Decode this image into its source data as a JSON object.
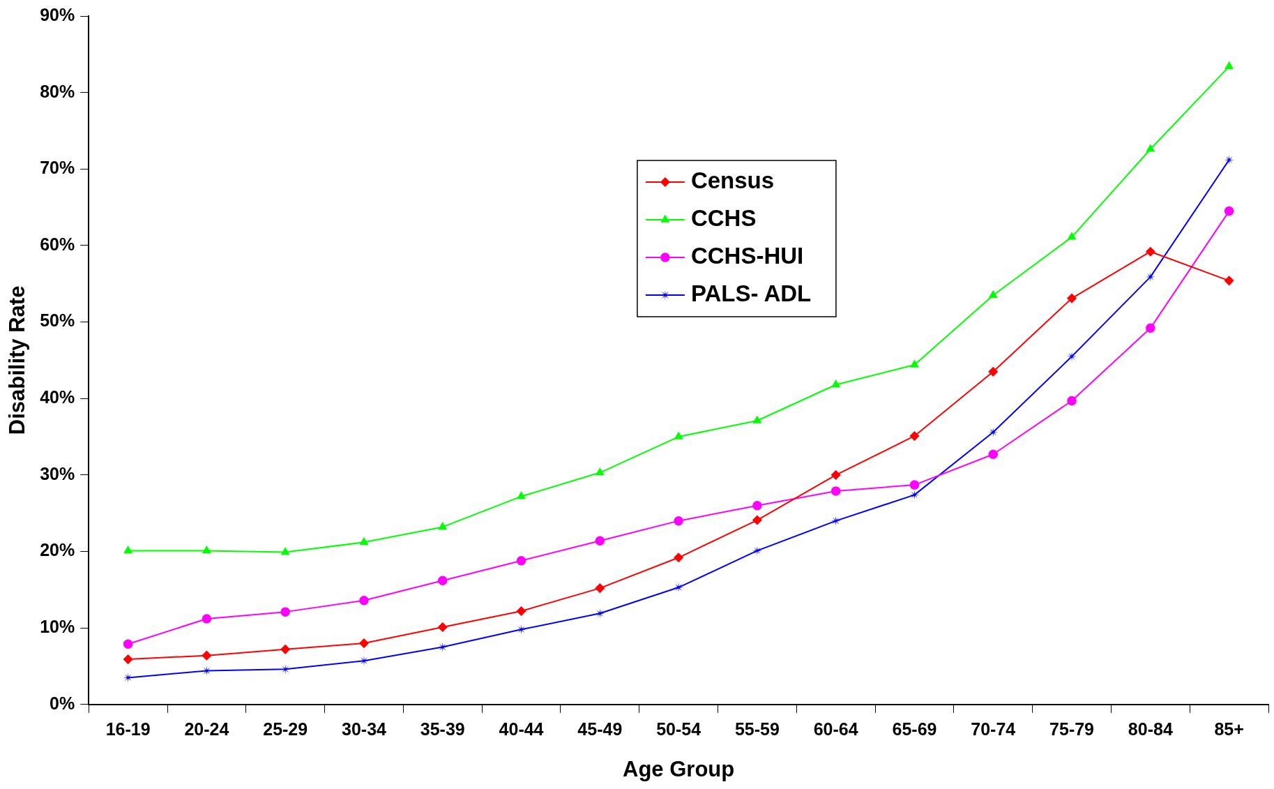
{
  "chart_data": {
    "type": "line",
    "xlabel": "Age Group",
    "ylabel": "Disability Rate",
    "categories": [
      "16-19",
      "20-24",
      "25-29",
      "30-34",
      "35-39",
      "40-44",
      "45-49",
      "50-54",
      "55-59",
      "60-64",
      "65-69",
      "70-74",
      "75-79",
      "80-84",
      "85+"
    ],
    "ylim": [
      0,
      90
    ],
    "yticks": [
      {
        "value": 0,
        "label": "0%"
      },
      {
        "value": 10,
        "label": "10%"
      },
      {
        "value": 20,
        "label": "20%"
      },
      {
        "value": 30,
        "label": "30%"
      },
      {
        "value": 40,
        "label": "40%"
      },
      {
        "value": 50,
        "label": "50%"
      },
      {
        "value": 60,
        "label": "60%"
      },
      {
        "value": 70,
        "label": "70%"
      },
      {
        "value": 80,
        "label": "80%"
      },
      {
        "value": 90,
        "label": "90%"
      }
    ],
    "grid": false,
    "legend": "top center",
    "line_style": "solid",
    "series": [
      {
        "name": "Census",
        "color": "#ff0000",
        "marker": "diamond",
        "values": [
          5.9,
          6.4,
          7.2,
          8.0,
          10.1,
          12.2,
          15.2,
          19.2,
          24.1,
          30.0,
          35.1,
          43.5,
          53.1,
          59.2,
          55.4
        ]
      },
      {
        "name": "CCHS",
        "color": "#00ff00",
        "marker": "triangle",
        "values": [
          20.1,
          20.1,
          19.9,
          21.2,
          23.2,
          27.2,
          30.3,
          35.0,
          37.1,
          41.8,
          44.4,
          53.5,
          61.1,
          72.6,
          83.4
        ]
      },
      {
        "name": "CCHS-HUI",
        "color": "#ff00ff",
        "marker": "circle",
        "values": [
          7.9,
          11.2,
          12.1,
          13.6,
          16.2,
          18.8,
          21.4,
          24.0,
          26.0,
          27.9,
          28.7,
          32.7,
          39.7,
          49.2,
          64.5
        ]
      },
      {
        "name": "PALS- ADL",
        "color": "#0000ff",
        "marker": "star",
        "values": [
          3.5,
          4.4,
          4.6,
          5.7,
          7.5,
          9.8,
          11.9,
          15.3,
          20.1,
          24.0,
          27.4,
          35.6,
          45.5,
          55.9,
          71.2
        ]
      }
    ]
  }
}
